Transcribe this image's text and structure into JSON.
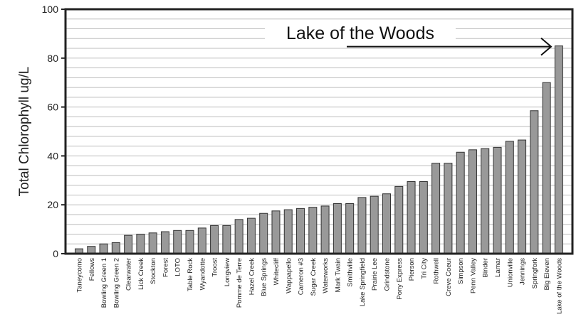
{
  "chart_data": {
    "type": "bar",
    "title": "",
    "xlabel": "",
    "ylabel": "Total Chlorophyll ug/L",
    "ylim": [
      0,
      100
    ],
    "yticks": [
      0,
      20,
      40,
      60,
      80,
      100
    ],
    "grid": true,
    "legend": "none",
    "bar_color": "#999999",
    "annotation": "Lake of the Woods",
    "categories": [
      "Taneycomo",
      "Fellows",
      "Bowling Green 1",
      "Bowling Green 2",
      "Clearwater",
      "Lick Creek",
      "Stockton",
      "Forest",
      "LOTO",
      "Table Rock",
      "Wyandotte",
      "Troost",
      "Longview",
      "Pomme de Terre",
      "Hazel Creek",
      "Blue Springs",
      "Whitecliff",
      "Wappapello",
      "Cameron #3",
      "Sugar Creek",
      "Waterworks",
      "Mark Twain",
      "Smithville",
      "Lake Springfield",
      "Prairie Lee",
      "Grindstone",
      "Pony Express",
      "Pierson",
      "Tri City",
      "Rothwell",
      "Creve Coeur",
      "Simpson",
      "Penn Valley",
      "Binder",
      "Lamar",
      "Unionville",
      "Jennings",
      "Springfork",
      "Big Eleven",
      "Lake of the Woods"
    ],
    "values": [
      2,
      3,
      4,
      4.5,
      7.5,
      8,
      8.5,
      9,
      9.5,
      9.5,
      10.5,
      11.5,
      11.5,
      14,
      14.5,
      16.5,
      17.5,
      18,
      18.5,
      19,
      19.5,
      20.5,
      20.5,
      23,
      23.5,
      24.5,
      27.5,
      29.5,
      29.5,
      37,
      37,
      41.5,
      42.5,
      43,
      43.5,
      46,
      46.5,
      58.5,
      70,
      85
    ]
  }
}
